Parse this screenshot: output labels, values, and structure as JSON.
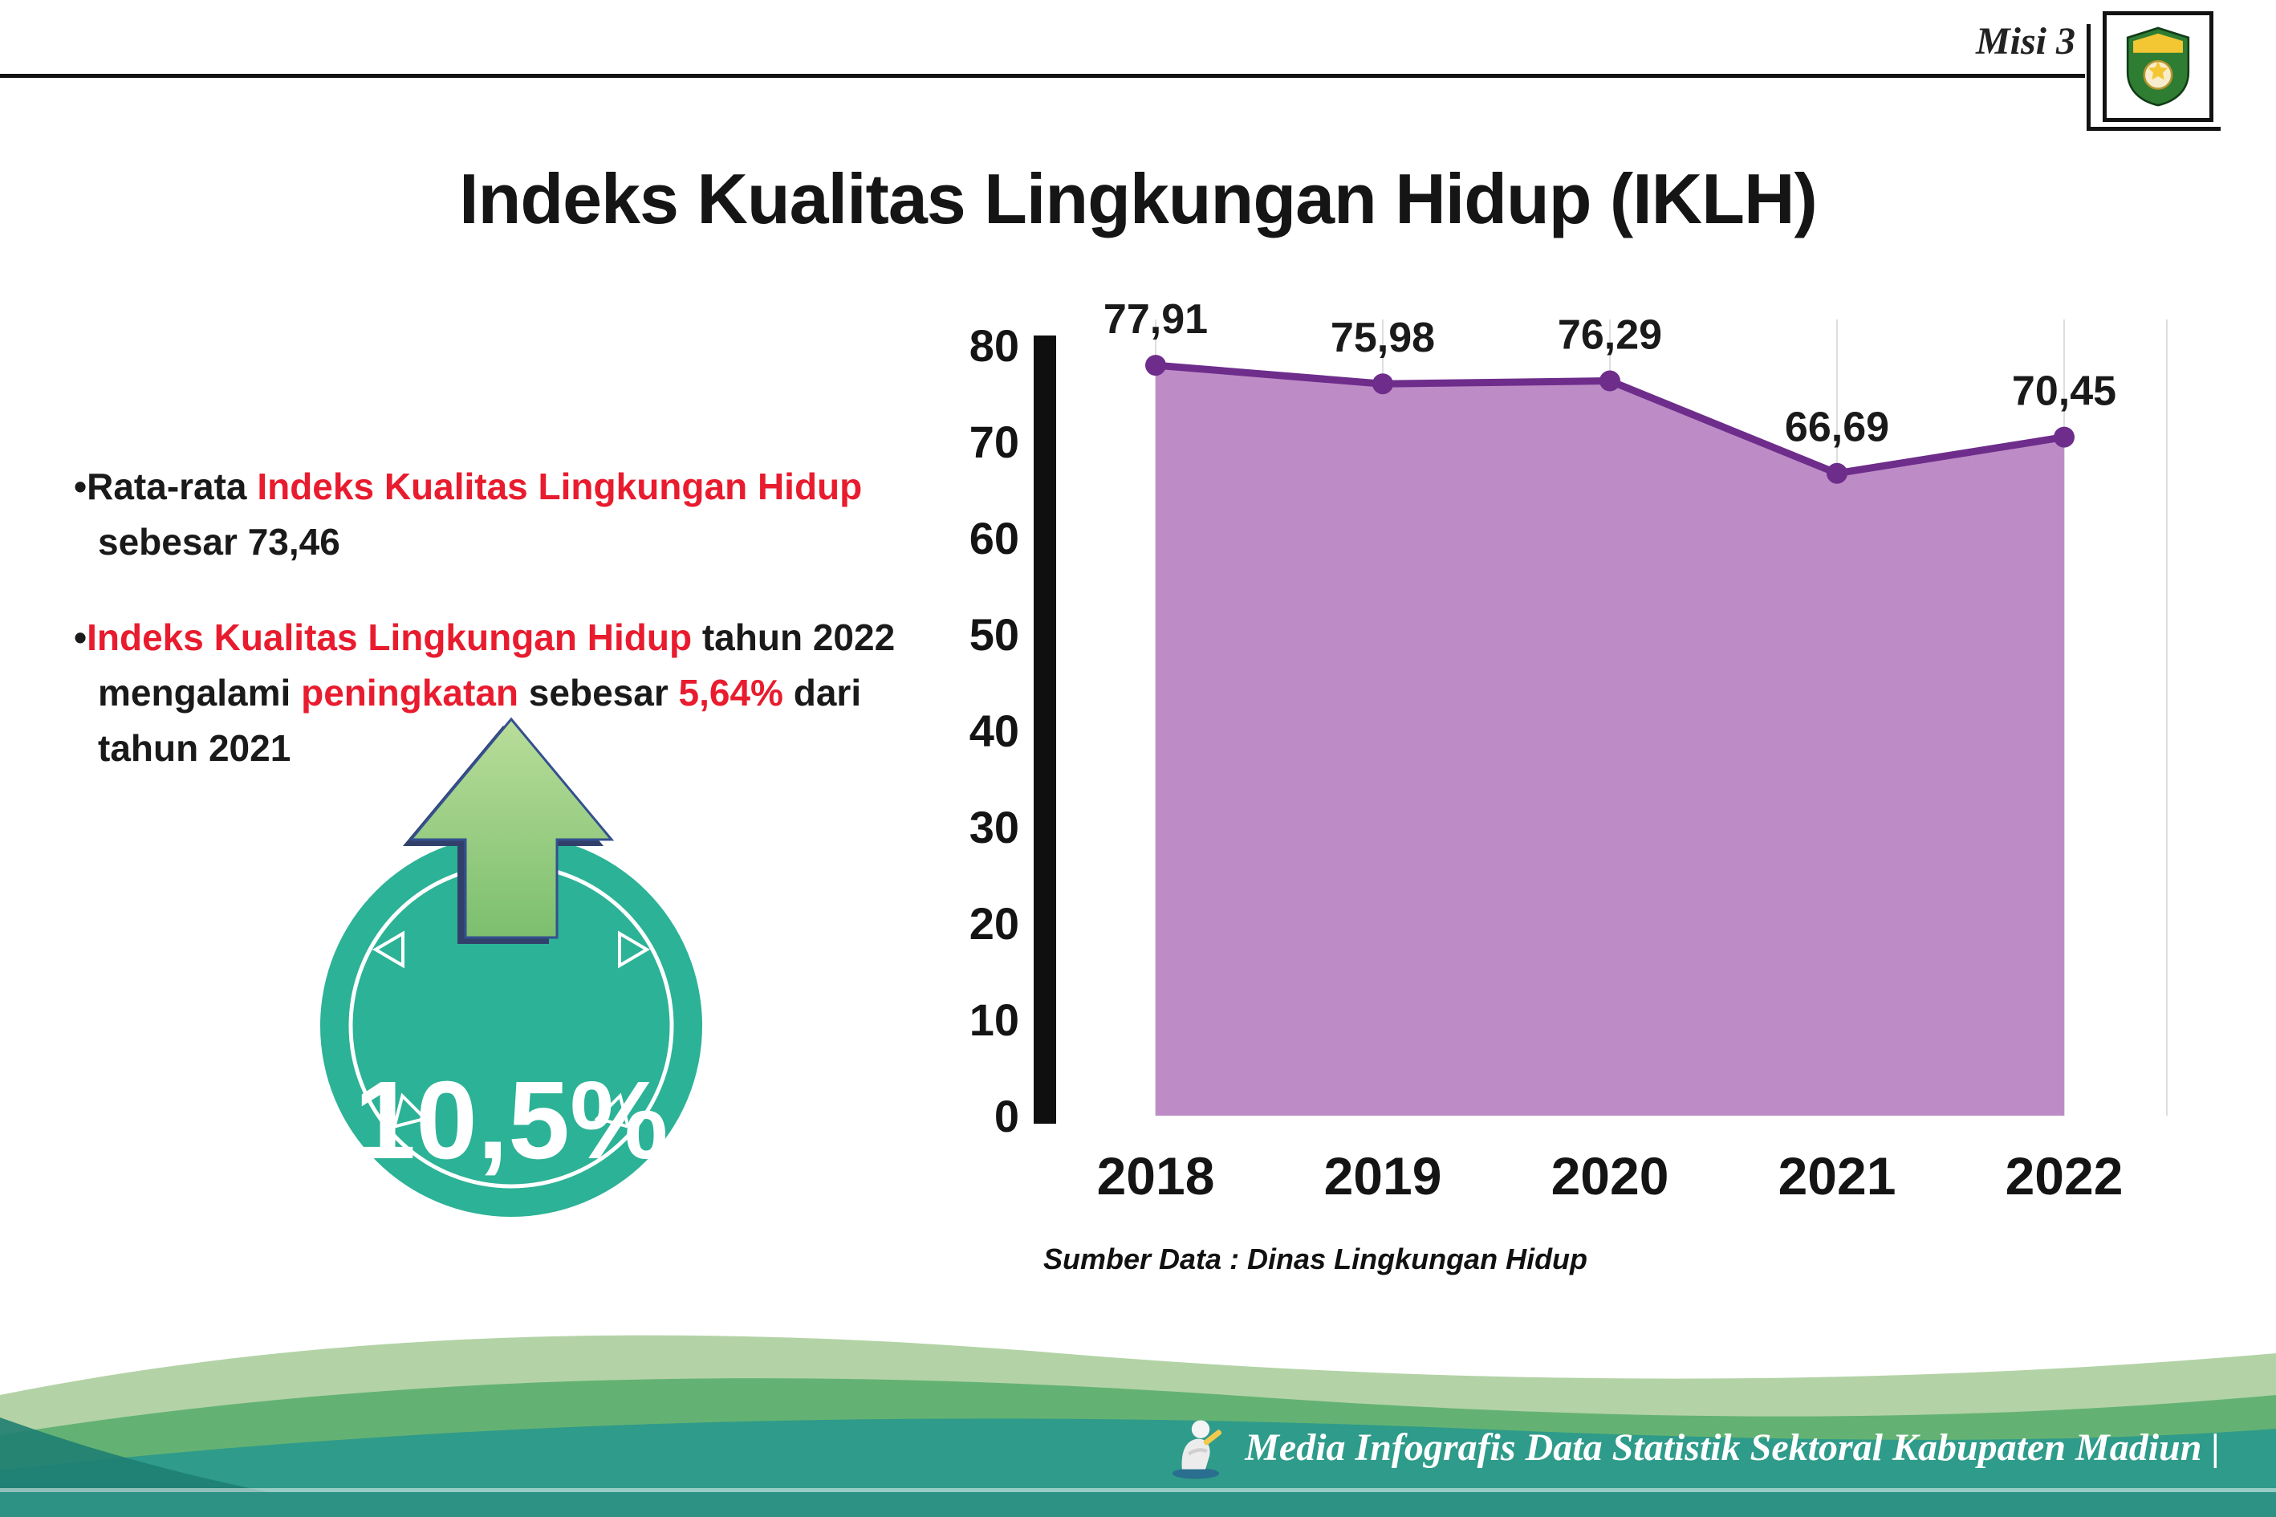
{
  "header": {
    "misi_label": "Misi 3",
    "title": "Indeks Kualitas Lingkungan Hidup (IKLH)",
    "logo_icon": "kabupaten-madiun-crest"
  },
  "bullets": [
    {
      "marker": "•",
      "segments": [
        {
          "text": "Rata-rata ",
          "color": "#1a1a1a"
        },
        {
          "text": "Indeks Kualitas Lingkungan Hidup",
          "color": "#e81c2e"
        },
        {
          "text": " sebesar 73,46",
          "color": "#1a1a1a"
        }
      ]
    },
    {
      "marker": "•",
      "segments": [
        {
          "text": "Indeks Kualitas Lingkungan Hidup",
          "color": "#e81c2e"
        },
        {
          "text": " tahun 2022 mengalami ",
          "color": "#1a1a1a"
        },
        {
          "text": "peningkatan",
          "color": "#e81c2e"
        },
        {
          "text": " sebesar ",
          "color": "#1a1a1a"
        },
        {
          "text": "5,64%",
          "color": "#e81c2e"
        },
        {
          "text": " dari tahun 2021",
          "color": "#1a1a1a"
        }
      ]
    }
  ],
  "badge": {
    "value": "10,5%",
    "circle_color": "#2cb296",
    "arrow_color": "#8cc97c",
    "arrow_shadow_color": "#31406b",
    "icon": "up-arrow-icon"
  },
  "chart_data": {
    "type": "area",
    "title": "",
    "categories": [
      "2018",
      "2019",
      "2020",
      "2021",
      "2022"
    ],
    "values": [
      77.91,
      75.98,
      76.29,
      66.69,
      70.45
    ],
    "data_labels": [
      "77,91",
      "75,98",
      "76,29",
      "66,69",
      "70,45"
    ],
    "xlabel": "",
    "ylabel": "",
    "ylim": [
      0,
      80
    ],
    "ytick_step": 10,
    "grid": "vertical-light",
    "legend": "none",
    "line_color": "#6e2d8b",
    "fill_color": "#bd8cc6",
    "axis_color": "#0f0f0f",
    "source": "Sumber Data : Dinas Lingkungan Hidup"
  },
  "footer": {
    "text": "Media Infografis Data Statistik Sektoral Kabupaten Madiun |",
    "mascot_icon": "writer-mascot-icon",
    "band_colors": [
      "#b3d3a6",
      "#64b273",
      "#2f9b8a",
      "#2d9184"
    ]
  }
}
